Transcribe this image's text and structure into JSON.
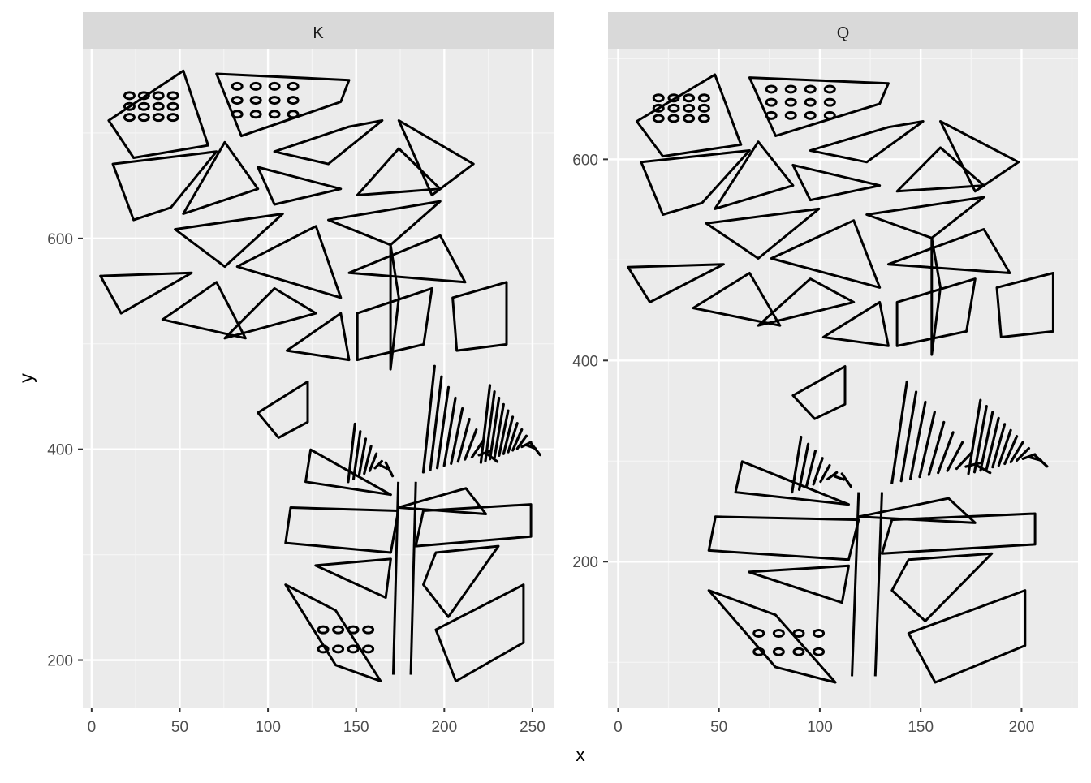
{
  "chart_data": {
    "type": "scatter",
    "xlabel": "x",
    "ylabel": "y",
    "grid": true,
    "panels": [
      {
        "strip_label": "K",
        "xlim": [
          -5,
          262
        ],
        "ylim": [
          155,
          780
        ],
        "x_ticks": [
          0,
          50,
          100,
          150,
          200,
          250
        ],
        "y_ticks": [
          200,
          400,
          600
        ],
        "regions": {
          "toe": {
            "x": [
              5,
              240
            ],
            "y": [
              470,
              765
            ]
          },
          "heel": {
            "x": [
              110,
              252
            ],
            "y": [
              180,
              485
            ]
          }
        }
      },
      {
        "strip_label": "Q",
        "xlim": [
          -5,
          228
        ],
        "ylim": [
          55,
          710
        ],
        "x_ticks": [
          0,
          50,
          100,
          150,
          200
        ],
        "y_ticks": [
          200,
          400,
          600
        ],
        "regions": {
          "toe": {
            "x": [
              5,
              220
            ],
            "y": [
              400,
              690
            ]
          },
          "heel": {
            "x": [
              45,
              210
            ],
            "y": [
              80,
              385
            ]
          }
        }
      }
    ]
  }
}
